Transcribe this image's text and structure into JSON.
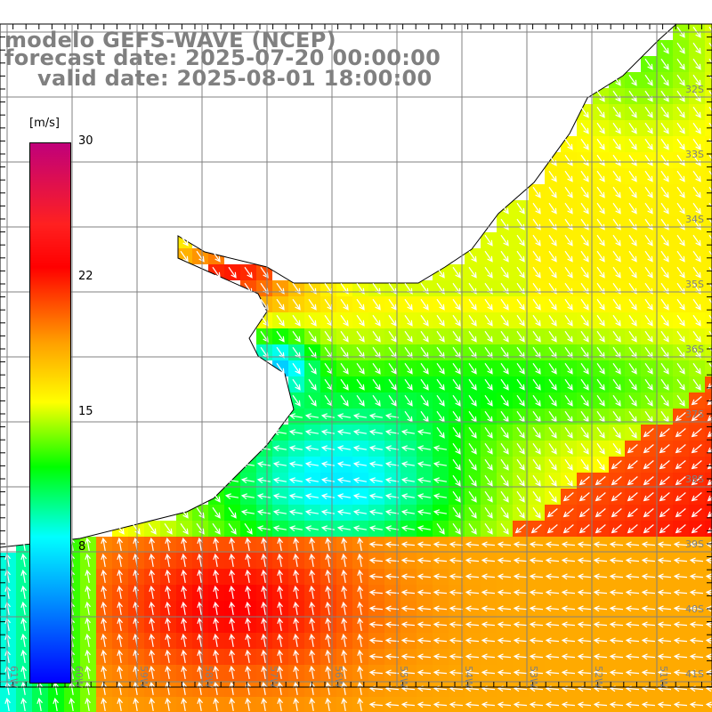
{
  "title": {
    "model": "modelo GEFS-WAVE (NCEP)",
    "forecast": "forecast date: 2025-07-20 00:00:00",
    "valid": "valid date: 2025-08-01 18:00:00"
  },
  "colorbar": {
    "unit": "[m/s]",
    "ticks": [
      "30",
      "22",
      "15",
      "8"
    ],
    "range": [
      0,
      30
    ]
  },
  "axes": {
    "lat_labels": [
      "32S",
      "33S",
      "34S",
      "35S",
      "36S",
      "37S",
      "38S",
      "39S",
      "40S",
      "41S"
    ],
    "lon_labels": [
      "61W",
      "60W",
      "59W",
      "58W",
      "57W",
      "56W",
      "55W",
      "54W",
      "53W",
      "52W",
      "51W"
    ]
  },
  "colors": {
    "grid": "#808080",
    "title": "#808080",
    "coast": "#000000",
    "arrow": "#ffffff"
  }
}
